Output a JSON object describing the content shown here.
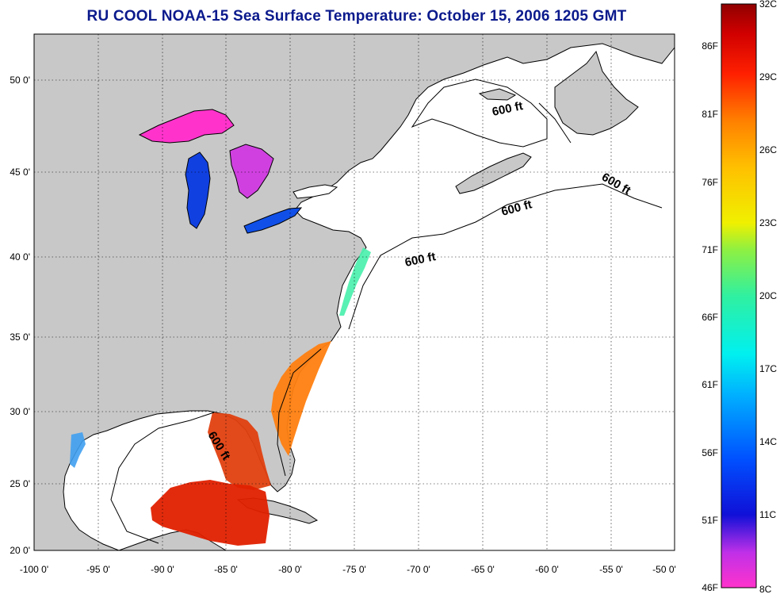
{
  "title": "RU COOL  NOAA-15  Sea Surface Temperature:  October 15, 2006 1205 GMT",
  "map": {
    "lon_labels": [
      "-100 0'",
      "-95 0'",
      "-90 0'",
      "-85 0'",
      "-80 0'",
      "-75 0'",
      "-70 0'",
      "-65 0'",
      "-60 0'",
      "-55 0'",
      "-50 0'"
    ],
    "lat_labels": [
      "20 0'",
      "25 0'",
      "30 0'",
      "35 0'",
      "40 0'",
      "45 0'",
      "50 0'"
    ],
    "lon_range": [
      -100,
      -50
    ],
    "lat_range": [
      20,
      52.5
    ],
    "grid": "dotted",
    "contour_labels": [
      "600 ft",
      "600 ft",
      "600 ft",
      "600 ft",
      "600 ft"
    ]
  },
  "colorbar": {
    "celsius_labels": [
      "32C",
      "29C",
      "26C",
      "23C",
      "20C",
      "17C",
      "14C",
      "11C",
      "8C"
    ],
    "fahrenheit_labels": [
      "86F",
      "81F",
      "76F",
      "71F",
      "66F",
      "61F",
      "56F",
      "51F",
      "46F"
    ],
    "range_c": [
      8,
      32
    ]
  },
  "colors": {
    "title": "#0b1a8c",
    "land": "#c8c8c8",
    "ocean": "#ffffff",
    "warm": "#e02000",
    "cool": "#1040e0",
    "magenta": "#ff33cc"
  }
}
